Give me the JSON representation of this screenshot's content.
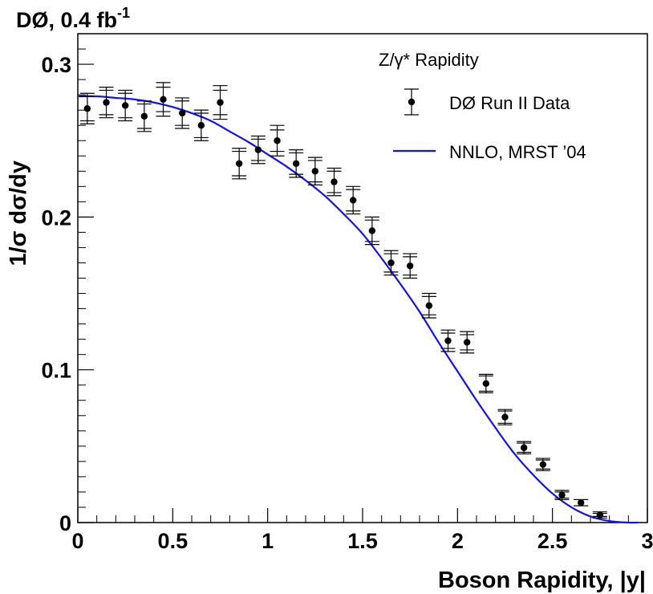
{
  "chart_data": {
    "type": "scatter",
    "title_main": "DØ, 0.4 fb",
    "title_sup": "-1",
    "xlabel": "Boson Rapidity, |y|",
    "ylabel": "1/σ dσ/dy",
    "xlim": [
      0,
      3.0
    ],
    "ylim": [
      0,
      0.32
    ],
    "x_ticks": [
      0,
      0.5,
      1,
      1.5,
      2,
      2.5,
      3
    ],
    "x_tick_labels": [
      "0",
      "0.5",
      "1",
      "1.5",
      "2",
      "2.5",
      "3"
    ],
    "y_ticks": [
      0,
      0.1,
      0.2,
      0.3
    ],
    "y_tick_labels": [
      "0",
      "0.1",
      "0.2",
      "0.3"
    ],
    "legend": {
      "header": "Z/γ* Rapidity",
      "entries": [
        "DØ Run II Data",
        "NNLO, MRST ’04"
      ],
      "placement": "top-right"
    },
    "series": [
      {
        "name": "DØ Run II Data",
        "x": [
          0.05,
          0.15,
          0.25,
          0.35,
          0.45,
          0.55,
          0.65,
          0.75,
          0.85,
          0.95,
          1.05,
          1.15,
          1.25,
          1.35,
          1.45,
          1.55,
          1.65,
          1.75,
          1.85,
          1.95,
          2.05,
          2.15,
          2.25,
          2.35,
          2.45,
          2.55,
          2.65,
          2.75
        ],
        "y": [
          0.271,
          0.275,
          0.273,
          0.266,
          0.277,
          0.268,
          0.26,
          0.275,
          0.235,
          0.244,
          0.25,
          0.235,
          0.23,
          0.223,
          0.211,
          0.191,
          0.17,
          0.168,
          0.142,
          0.119,
          0.118,
          0.091,
          0.069,
          0.049,
          0.038,
          0.018,
          0.013,
          0.005
        ],
        "err_stat": [
          0.008,
          0.008,
          0.008,
          0.008,
          0.008,
          0.008,
          0.008,
          0.008,
          0.008,
          0.007,
          0.007,
          0.007,
          0.007,
          0.007,
          0.007,
          0.007,
          0.006,
          0.006,
          0.006,
          0.005,
          0.005,
          0.005,
          0.004,
          0.003,
          0.003,
          0.002,
          0.002,
          0.001
        ],
        "err_total": [
          0.01,
          0.01,
          0.01,
          0.01,
          0.011,
          0.01,
          0.01,
          0.011,
          0.01,
          0.009,
          0.01,
          0.009,
          0.009,
          0.009,
          0.009,
          0.009,
          0.008,
          0.008,
          0.008,
          0.007,
          0.007,
          0.006,
          0.005,
          0.004,
          0.004,
          0.003,
          0.002,
          0.002
        ]
      },
      {
        "name": "NNLO, MRST ’04",
        "x": [
          0,
          0.1,
          0.2,
          0.3,
          0.4,
          0.5,
          0.6,
          0.7,
          0.8,
          0.9,
          1.0,
          1.1,
          1.2,
          1.3,
          1.4,
          1.5,
          1.6,
          1.7,
          1.8,
          1.9,
          2.0,
          2.1,
          2.2,
          2.3,
          2.4,
          2.5,
          2.6,
          2.7,
          2.8,
          2.9,
          2.95
        ],
        "y": [
          0.279,
          0.279,
          0.278,
          0.277,
          0.275,
          0.272,
          0.268,
          0.263,
          0.256,
          0.249,
          0.241,
          0.233,
          0.224,
          0.214,
          0.202,
          0.189,
          0.173,
          0.156,
          0.138,
          0.118,
          0.099,
          0.08,
          0.062,
          0.045,
          0.031,
          0.019,
          0.01,
          0.004,
          0.001,
          0.0,
          0.0
        ],
        "color": "#1010ff"
      }
    ]
  }
}
